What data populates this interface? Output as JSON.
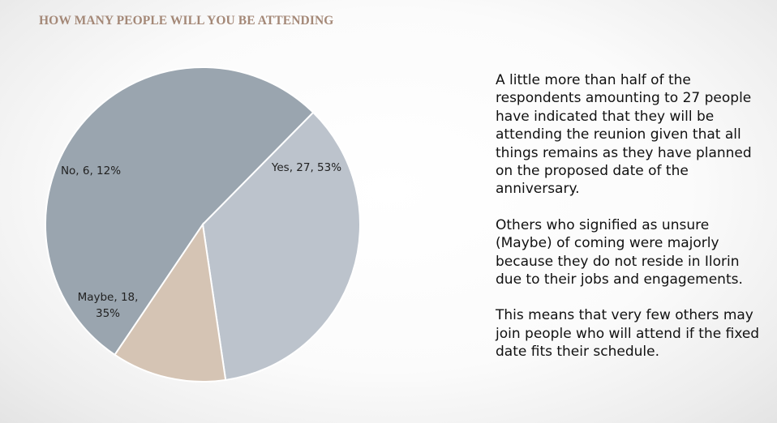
{
  "title": "HOW MANY PEOPLE WILL YOU BE ATTENDING",
  "chart_data": {
    "type": "pie",
    "title": "",
    "slices": [
      {
        "label": "Yes",
        "value": 27,
        "percent": "53%",
        "color": "#9aa5af",
        "data_label": [
          "Yes, 27, 53%"
        ]
      },
      {
        "label": "Maybe",
        "value": 18,
        "percent": "35%",
        "color": "#bcc3cc",
        "data_label": [
          "Maybe, 18,",
          "35%"
        ]
      },
      {
        "label": "No",
        "value": 6,
        "percent": "12%",
        "color": "#d5c4b4",
        "data_label": [
          "No, 6, 12%"
        ]
      }
    ]
  },
  "description": [
    "A little more than half of the respondents amounting to 27 people have indicated that they will be attending the reunion given that all things remains as they have planned on the proposed date of the anniversary.",
    "Others who signified as unsure (Maybe) of coming were majorly because they do not reside in Ilorin due to their jobs and engagements.",
    "This means that very few others may join people who will attend if the fixed date fits their schedule."
  ]
}
